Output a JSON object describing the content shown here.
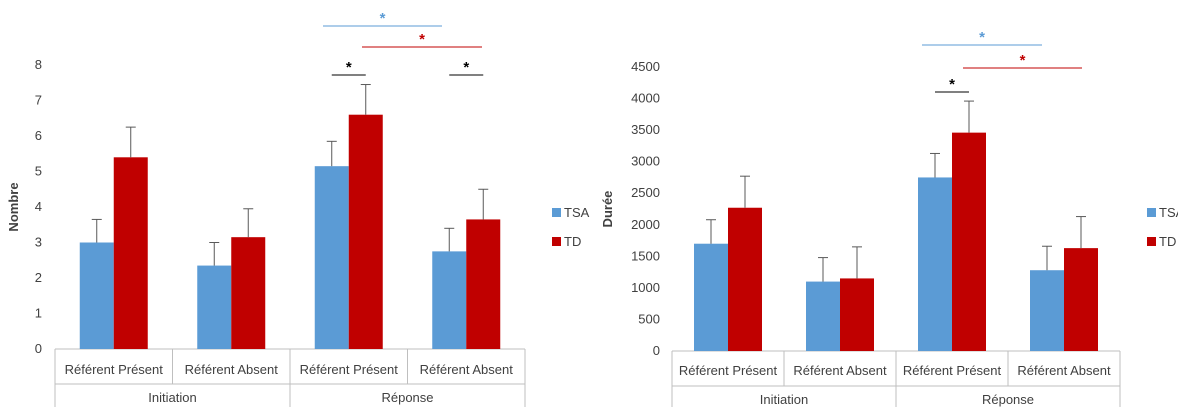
{
  "colors": {
    "TSA": "#5b9bd5",
    "TD": "#c00000",
    "sig_black": "#000000",
    "sig_blue": "#5b9bd5",
    "sig_red": "#c00000",
    "axis": "#bfbfbf",
    "errbar": "#595959"
  },
  "chart_data": [
    {
      "type": "bar",
      "ylabel": "Nombre",
      "ylim": [
        0,
        8
      ],
      "yticks": [
        "0",
        "1",
        "2",
        "3",
        "4",
        "5",
        "6",
        "7",
        "8"
      ],
      "categories": [
        "Référent Présent",
        "Référent Absent",
        "Référent Présent",
        "Référent Absent"
      ],
      "groups": [
        {
          "label": "Initiation",
          "span": [
            0,
            1
          ]
        },
        {
          "label": "Réponse",
          "span": [
            2,
            3
          ]
        }
      ],
      "series": [
        {
          "name": "TSA",
          "values": [
            3.0,
            2.35,
            5.15,
            2.75
          ],
          "errors": [
            0.65,
            0.65,
            0.7,
            0.65
          ]
        },
        {
          "name": "TD",
          "values": [
            5.4,
            3.15,
            6.6,
            3.65
          ],
          "errors": [
            0.85,
            0.8,
            0.85,
            0.85
          ]
        }
      ],
      "legend": {
        "position": "right",
        "entries": [
          "TSA",
          "TD"
        ]
      },
      "grid": false,
      "significance": [
        {
          "label": "*",
          "color": "sig_blue",
          "from": 2,
          "to": 3,
          "series": "TSA",
          "level": 3
        },
        {
          "label": "*",
          "color": "sig_red",
          "from": 2,
          "to": 3,
          "series": "TD",
          "level": 2
        },
        {
          "label": "*",
          "color": "sig_black",
          "from": 2,
          "to": 2,
          "series": "both",
          "level": 1
        },
        {
          "label": "*",
          "color": "sig_black",
          "from": 3,
          "to": 3,
          "series": "both",
          "level": 1
        }
      ]
    },
    {
      "type": "bar",
      "ylabel": "Durée",
      "ylim": [
        0,
        4500
      ],
      "yticks": [
        "0",
        "500",
        "1000",
        "1500",
        "2000",
        "2500",
        "3000",
        "3500",
        "4000",
        "4500"
      ],
      "categories": [
        "Référent Présent",
        "Référent Absent",
        "Référent Présent",
        "Référent Absent"
      ],
      "groups": [
        {
          "label": "Initiation",
          "span": [
            0,
            1
          ]
        },
        {
          "label": "Réponse",
          "span": [
            2,
            3
          ]
        }
      ],
      "series": [
        {
          "name": "TSA",
          "values": [
            1700,
            1100,
            2750,
            1280
          ],
          "errors": [
            380,
            380,
            380,
            380
          ]
        },
        {
          "name": "TD",
          "values": [
            2270,
            1150,
            3460,
            1630
          ],
          "errors": [
            500,
            500,
            500,
            500
          ]
        }
      ],
      "legend": {
        "position": "right",
        "entries": [
          "TSA",
          "TD"
        ]
      },
      "grid": false,
      "significance": [
        {
          "label": "*",
          "color": "sig_blue",
          "from": 2,
          "to": 3,
          "series": "TSA",
          "level": 3
        },
        {
          "label": "*",
          "color": "sig_red",
          "from": 2,
          "to": 3,
          "series": "TD",
          "level": 2
        },
        {
          "label": "*",
          "color": "sig_black",
          "from": 2,
          "to": 2,
          "series": "both",
          "level": 1
        }
      ]
    }
  ]
}
